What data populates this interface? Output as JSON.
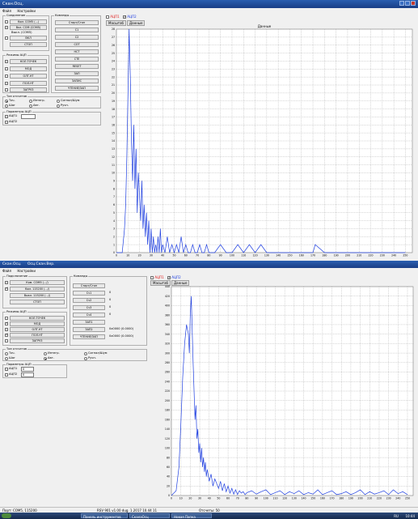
{
  "window1": {
    "title": "Скан.Осц.",
    "menu": [
      "Файл",
      "Настройки"
    ],
    "left": {
      "group_connection": {
        "title": "Соединение",
        "items": [
          {
            "checked": false,
            "label": "Ком. COM5 (...)"
          },
          {
            "checked": false,
            "label": "Вкл. СОМ (COM5)"
          },
          {
            "checked": false,
            "label": "Выкл. (COM5)"
          },
          {
            "checked": false,
            "label": "ВКЛ"
          }
        ],
        "stop_label": "СТОП"
      },
      "group_commands": {
        "title": "Команды",
        "buttons": [
          "Старт/Стоп",
          "С1",
          "С2",
          "СОТ",
          "НСТ",
          "СТЕ",
          "RESET",
          "ЗАП",
          "ЗАПИС",
          "ЧТЕНИЕ/ЗАП"
        ]
      },
      "group_mode": {
        "title": "Режимы АЦП",
        "items": [
          {
            "checked": false,
            "label": "КОЛ.ТОЧЕК"
          },
          {
            "checked": false,
            "label": "МОД"
          },
          {
            "checked": false,
            "label": "ОЛТ.НТ"
          },
          {
            "checked": false,
            "label": "ПОЛ.НТ"
          },
          {
            "checked": false,
            "label": "ЗАГРУЗ"
          }
        ]
      },
      "group_type": {
        "title": "Тип отсчетов",
        "radios": [
          {
            "on": true,
            "label": "Точ."
          },
          {
            "on": false,
            "label": "Интегр."
          },
          {
            "on": false,
            "label": "Сигнал/Шум"
          },
          {
            "on": false,
            "label": "Шаг"
          },
          {
            "on": false,
            "label": "Авт."
          },
          {
            "on": false,
            "label": "Ручн."
          }
        ]
      },
      "group_params": {
        "title": "Параметры АЦП",
        "items": [
          {
            "checked": false,
            "label": "АЦП1"
          },
          {
            "checked": false,
            "label": "АЦП2"
          }
        ]
      }
    },
    "graph_top": {
      "legend": [
        {
          "label": "АЦП1",
          "checked": false,
          "color": "#e02020"
        },
        {
          "label": "АЦП2",
          "checked": true,
          "color": "#2040e0"
        }
      ],
      "tabs": [
        "Масштаб",
        "Данные"
      ],
      "title": "Данные"
    },
    "chart_data": {
      "type": "line",
      "title": "Данные",
      "xlabel": "",
      "ylabel": "",
      "xlim": [
        0,
        256
      ],
      "ylim": [
        0,
        28
      ],
      "xticks": [
        0,
        10,
        20,
        30,
        40,
        50,
        60,
        70,
        80,
        90,
        100,
        110,
        120,
        130,
        140,
        150,
        160,
        170,
        180,
        190,
        200,
        210,
        220,
        230,
        240,
        250
      ],
      "yticks": [
        0,
        1,
        2,
        3,
        4,
        5,
        6,
        7,
        8,
        9,
        10,
        11,
        12,
        13,
        14,
        15,
        16,
        17,
        18,
        19,
        20,
        21,
        22,
        23,
        24,
        25,
        26,
        27,
        28
      ],
      "grid": true,
      "color": "#2040e0",
      "x": [
        0,
        5,
        7,
        8,
        9,
        10,
        11,
        12,
        13,
        14,
        15,
        16,
        17,
        18,
        19,
        20,
        21,
        22,
        23,
        24,
        25,
        26,
        27,
        28,
        29,
        30,
        31,
        32,
        33,
        34,
        35,
        36,
        37,
        38,
        39,
        40,
        42,
        44,
        46,
        48,
        50,
        52,
        54,
        56,
        58,
        60,
        62,
        64,
        66,
        68,
        70,
        72,
        74,
        76,
        78,
        80,
        85,
        90,
        95,
        100,
        105,
        110,
        115,
        120,
        125,
        130,
        150,
        170,
        172,
        180,
        200,
        250
      ],
      "y": [
        0,
        0,
        3,
        6,
        12,
        20,
        28,
        22,
        14,
        9,
        16,
        8,
        13,
        5,
        10,
        7,
        4,
        9,
        3,
        6,
        2,
        5,
        1,
        4,
        0,
        3,
        0,
        2,
        0,
        1,
        0,
        2,
        0,
        3,
        0,
        1,
        0,
        2,
        0,
        1,
        0,
        1,
        0,
        2,
        0,
        1,
        0,
        0,
        1,
        0,
        0,
        1,
        0,
        0,
        1,
        0,
        0,
        1,
        0,
        0,
        1,
        0,
        1,
        0,
        1,
        0,
        0,
        0,
        1,
        0,
        0,
        0
      ]
    }
  },
  "window2": {
    "title": "Скан.Осц.",
    "subtitle": "Осц.Скан.Вер.",
    "menu": [
      "Файл",
      "Настройки"
    ],
    "left": {
      "group_connection": {
        "title": "Подключение",
        "items": [
          {
            "checked": false,
            "label": "Ком. COM5 (.../)"
          },
          {
            "checked": true,
            "label": "Ком. 115200 (.../)"
          },
          {
            "checked": false,
            "label": "Выкл. 115200 (.../)"
          },
          {
            "checked": false,
            "label": "СТОП"
          }
        ]
      },
      "group_commands": {
        "title": "Команды",
        "buttons": [
          "Старт/Стоп",
          "Сч1",
          "Сч2",
          "Сч3",
          "Сч4",
          "ЗАП1",
          "ЗАП2",
          "ЧТЕНИЕ/ЗАП"
        ],
        "values": [
          "0",
          "0",
          "0",
          "0",
          "0",
          "",
          "0x0000 (0.0000)",
          "0x0000 (0.0000)"
        ]
      },
      "group_adc": {
        "title": "Режимы АЦП",
        "items": [
          {
            "checked": false,
            "label": "КОЛ.ТОЧЕК"
          },
          {
            "checked": true,
            "label": "МОД"
          },
          {
            "checked": false,
            "label": "ОЛТ.НТ"
          },
          {
            "checked": true,
            "label": "ПОЛ.НТ"
          },
          {
            "checked": false,
            "label": "ЗАГРУЗ"
          }
        ]
      },
      "group_type": {
        "title": "Тип отсчетов",
        "radios": [
          {
            "on": false,
            "label": "Точ."
          },
          {
            "on": false,
            "label": "Интегр."
          },
          {
            "on": false,
            "label": "Сигнал/Шум"
          },
          {
            "on": false,
            "label": "Шаг"
          },
          {
            "on": true,
            "label": "Авт."
          },
          {
            "on": false,
            "label": "Ручн."
          }
        ]
      },
      "group_params": {
        "title": "Параметры АЦП",
        "items": [
          {
            "checked": false,
            "label": "АЦП1",
            "value": "0"
          },
          {
            "checked": false,
            "label": "АЦП2",
            "value": "0"
          }
        ]
      }
    },
    "graph_top": {
      "legend": [
        {
          "label": "АЦП1",
          "checked": false,
          "color": "#e02020"
        },
        {
          "label": "АЦП2",
          "checked": true,
          "color": "#2040e0"
        }
      ],
      "tabs": [
        "Масштаб",
        "Данные"
      ]
    },
    "chart_data": {
      "type": "line",
      "title": "",
      "xlabel": "",
      "ylabel": "",
      "xlim": [
        0,
        256
      ],
      "ylim": [
        0,
        440
      ],
      "yticks": [
        0,
        20,
        40,
        60,
        80,
        100,
        120,
        140,
        160,
        180,
        200,
        220,
        240,
        260,
        280,
        300,
        320,
        340,
        360,
        380,
        400,
        420,
        440
      ],
      "xticks": [
        0,
        10,
        20,
        30,
        40,
        50,
        60,
        70,
        80,
        90,
        100,
        110,
        120,
        130,
        140,
        150,
        160,
        170,
        180,
        190,
        200,
        210,
        220,
        230,
        240,
        250
      ],
      "grid": true,
      "color": "#2040e0",
      "x": [
        0,
        5,
        8,
        10,
        12,
        14,
        16,
        18,
        19,
        20,
        21,
        22,
        23,
        24,
        25,
        26,
        27,
        28,
        29,
        30,
        31,
        32,
        33,
        34,
        35,
        36,
        37,
        38,
        40,
        42,
        44,
        46,
        48,
        50,
        52,
        54,
        56,
        58,
        60,
        62,
        64,
        66,
        68,
        70,
        72,
        74,
        76,
        78,
        80,
        85,
        90,
        95,
        100,
        105,
        110,
        115,
        120,
        125,
        130,
        135,
        140,
        145,
        150,
        155,
        160,
        165,
        170,
        175,
        180,
        185,
        190,
        195,
        200,
        205,
        210,
        215,
        220,
        225,
        230,
        235,
        240,
        245,
        250
      ],
      "y": [
        0,
        10,
        60,
        150,
        250,
        320,
        360,
        340,
        300,
        380,
        420,
        350,
        280,
        220,
        160,
        190,
        120,
        140,
        90,
        110,
        70,
        100,
        60,
        80,
        50,
        70,
        40,
        55,
        30,
        45,
        20,
        35,
        25,
        15,
        30,
        10,
        25,
        8,
        20,
        5,
        15,
        3,
        12,
        2,
        10,
        5,
        8,
        2,
        6,
        10,
        3,
        8,
        12,
        2,
        6,
        10,
        2,
        8,
        4,
        10,
        2,
        6,
        3,
        12,
        2,
        6,
        10,
        2,
        4,
        8,
        2,
        6,
        12,
        2,
        8,
        3,
        6,
        10,
        2,
        12,
        4,
        8,
        2
      ]
    },
    "statusbar": {
      "port": "Порт: COM5, 115200",
      "version": "RSV 901 v1.00 dug. 1.2017 10.44 11",
      "count": "Отсчеты: 50"
    },
    "taskbar": {
      "buttons": [
        "Панель инструментов",
        "СкалаОсц",
        "Новая Папка"
      ],
      "lang": "RU",
      "time": "10:44"
    }
  }
}
